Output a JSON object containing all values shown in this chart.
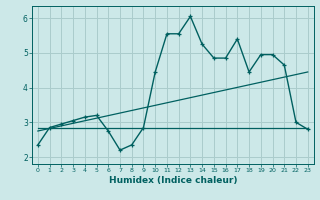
{
  "xlabel": "Humidex (Indice chaleur)",
  "background_color": "#cce8e8",
  "line_color": "#006060",
  "grid_color": "#aacccc",
  "xlim": [
    -0.5,
    23.5
  ],
  "ylim": [
    1.8,
    6.35
  ],
  "xticks": [
    0,
    1,
    2,
    3,
    4,
    5,
    6,
    7,
    8,
    9,
    10,
    11,
    12,
    13,
    14,
    15,
    16,
    17,
    18,
    19,
    20,
    21,
    22,
    23
  ],
  "yticks": [
    2,
    3,
    4,
    5,
    6
  ],
  "main_x": [
    0,
    1,
    2,
    3,
    4,
    5,
    6,
    7,
    8,
    9,
    10,
    11,
    12,
    13,
    14,
    15,
    16,
    17,
    18,
    19,
    20,
    21,
    22,
    23
  ],
  "main_y": [
    2.35,
    2.85,
    2.95,
    3.05,
    3.15,
    3.2,
    2.75,
    2.2,
    2.35,
    2.85,
    4.45,
    5.55,
    5.55,
    6.05,
    5.25,
    4.85,
    4.85,
    5.4,
    4.45,
    4.95,
    4.95,
    4.65,
    3.0,
    2.8
  ],
  "line1_x": [
    0,
    23
  ],
  "line1_y": [
    2.85,
    2.85
  ],
  "line2_x": [
    0,
    23
  ],
  "line2_y": [
    2.75,
    4.45
  ]
}
